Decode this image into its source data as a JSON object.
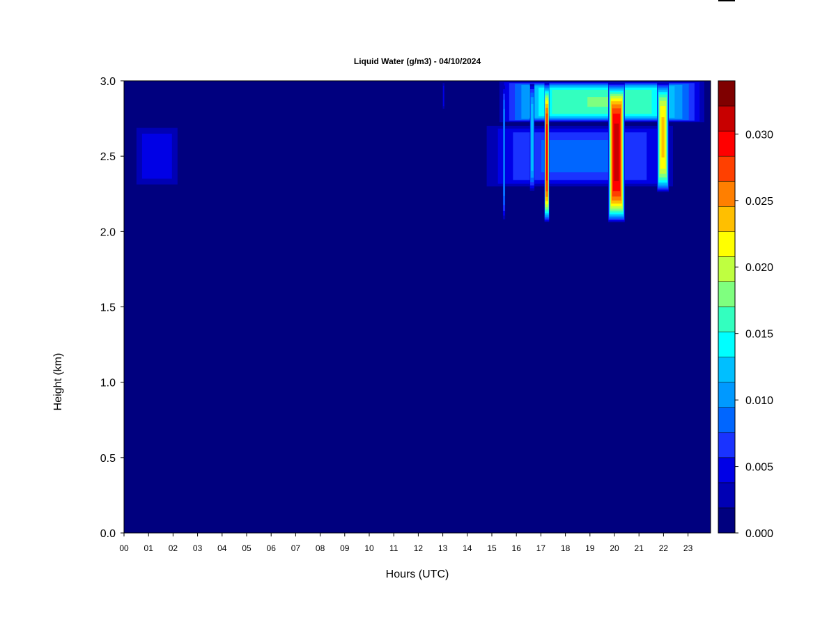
{
  "chart_data": {
    "type": "heatmap",
    "title": "Liquid Water (g/m3) - 04/10/2024",
    "xlabel": "Hours (UTC)",
    "ylabel": "Height (km)",
    "xlim": [
      0,
      24
    ],
    "ylim": [
      0,
      3.0
    ],
    "x_ticks": [
      "00",
      "01",
      "02",
      "03",
      "04",
      "05",
      "06",
      "07",
      "08",
      "09",
      "10",
      "11",
      "12",
      "13",
      "14",
      "15",
      "16",
      "17",
      "18",
      "19",
      "20",
      "21",
      "22",
      "23"
    ],
    "y_ticks": [
      "0.0",
      "0.5",
      "1.0",
      "1.5",
      "2.0",
      "2.5",
      "3.0"
    ],
    "background_value": 0.0,
    "colorbar": {
      "min": 0.0,
      "max": 0.034,
      "tick_labels": [
        "0.000",
        "0.005",
        "0.010",
        "0.015",
        "0.020",
        "0.025",
        "0.030"
      ],
      "tick_values": [
        0.0,
        0.005,
        0.01,
        0.015,
        0.02,
        0.025,
        0.03
      ],
      "colors": [
        "#00007f",
        "#0000b4",
        "#0000e6",
        "#1a33ff",
        "#0066ff",
        "#0099ff",
        "#00bfff",
        "#00ffff",
        "#33ffbf",
        "#7fff7f",
        "#bfff40",
        "#ffff00",
        "#ffbf00",
        "#ff7f00",
        "#ff4000",
        "#ff0000",
        "#c80000",
        "#7f0000"
      ]
    },
    "features": [
      {
        "x": [
          0.3,
          2.4
        ],
        "y": [
          2.28,
          2.72
        ],
        "peak": 0.006
      },
      {
        "x": [
          14.3,
          23.0
        ],
        "y": [
          2.28,
          2.72
        ],
        "peak": 0.009
      },
      {
        "x": [
          15.1,
          24.0
        ],
        "y": [
          2.72,
          3.0
        ],
        "peak": 0.018
      },
      {
        "x": [
          15.5,
          15.6
        ],
        "y": [
          2.05,
          3.0
        ],
        "peak": 0.012
      },
      {
        "x": [
          16.6,
          16.8
        ],
        "y": [
          2.25,
          3.0
        ],
        "peak": 0.014
      },
      {
        "x": [
          17.2,
          17.4
        ],
        "y": [
          2.05,
          3.0
        ],
        "peak": 0.03
      },
      {
        "x": [
          19.8,
          20.5
        ],
        "y": [
          2.05,
          3.0
        ],
        "peak": 0.032
      },
      {
        "x": [
          21.8,
          22.3
        ],
        "y": [
          2.25,
          3.0
        ],
        "peak": 0.024
      },
      {
        "x": [
          13.05,
          13.1
        ],
        "y": [
          2.8,
          3.0
        ],
        "peak": 0.006
      }
    ]
  }
}
